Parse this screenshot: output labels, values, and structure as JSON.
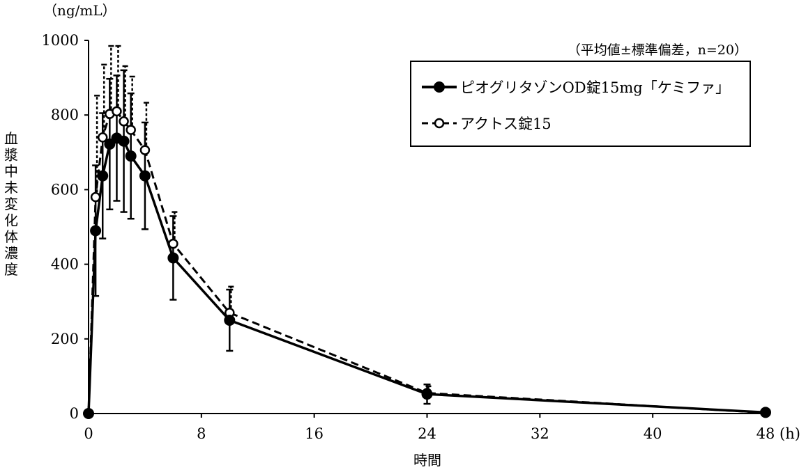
{
  "chart_data": {
    "type": "line",
    "unit_label": "（ng/mL）",
    "ylabel": "血漿中未変化体濃度",
    "xlabel": "時間",
    "x_unit": "(h)",
    "note": "（平均値±標準偏差，n=20）",
    "xlim": [
      0,
      48
    ],
    "ylim": [
      0,
      1000
    ],
    "x_ticks": [
      0,
      8,
      16,
      24,
      32,
      40,
      48
    ],
    "y_ticks": [
      0,
      200,
      400,
      600,
      800,
      1000
    ],
    "grid": false,
    "legend_position": "top-right",
    "series": [
      {
        "name": "ピオグリタゾンOD錠15mg「ケミファ」",
        "style": "solid",
        "marker": "filled-circle",
        "x": [
          0,
          0.5,
          1,
          1.5,
          2,
          2.5,
          3,
          4,
          6,
          10,
          24,
          48
        ],
        "y": [
          0,
          490,
          637,
          722,
          738,
          730,
          690,
          637,
          417,
          250,
          52,
          3
        ],
        "sd": [
          0,
          175,
          168,
          175,
          168,
          190,
          168,
          143,
          112,
          82,
          26,
          0
        ]
      },
      {
        "name": "アクトス錠15",
        "style": "dashed",
        "marker": "open-circle",
        "x": [
          0,
          0.5,
          1,
          1.5,
          2,
          2.5,
          3,
          4,
          6,
          10,
          24,
          48
        ],
        "y": [
          0,
          580,
          740,
          803,
          810,
          783,
          760,
          706,
          455,
          270,
          55,
          2
        ],
        "sd": [
          0,
          272,
          195,
          182,
          175,
          148,
          143,
          127,
          85,
          70,
          18,
          0
        ]
      }
    ]
  }
}
